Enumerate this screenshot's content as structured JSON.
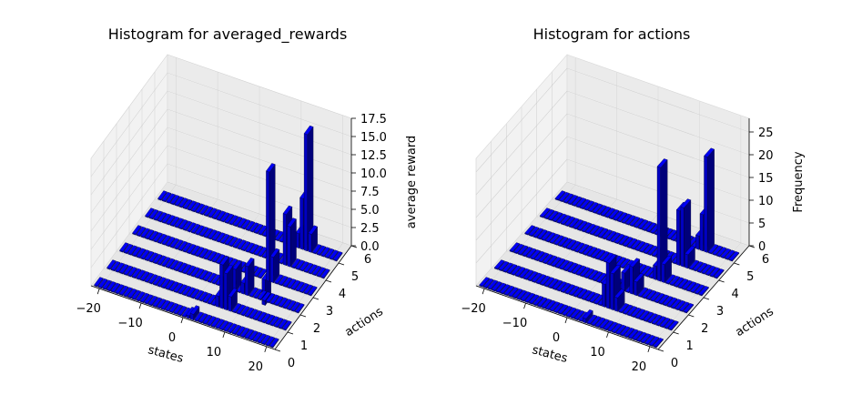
{
  "chart_data": [
    {
      "type": "bar3d",
      "title": "Histogram for averaged_rewards",
      "xlabel": "states",
      "ylabel": "actions",
      "zlabel": "average reward",
      "xlim": [
        -22,
        22
      ],
      "ylim": [
        0,
        6
      ],
      "zlim": [
        0,
        17.5
      ],
      "xticks": [
        "−20",
        "−10",
        "0",
        "10",
        "20"
      ],
      "yticks": [
        "0",
        "1",
        "2",
        "3",
        "4",
        "5",
        "6"
      ],
      "zticks": [
        "0.0",
        "2.5",
        "5.0",
        "7.5",
        "10.0",
        "12.5",
        "15.0",
        "17.5"
      ],
      "state_range": [
        -21,
        21
      ],
      "action_rows": [
        0,
        1,
        2,
        3,
        4,
        5
      ],
      "bar_color": "#0000cc",
      "bars": [
        {
          "state": 1,
          "action": 0,
          "value": 0.4
        },
        {
          "state": 2,
          "action": 0,
          "value": 0.8
        },
        {
          "state": 5,
          "action": 1,
          "value": 1.5
        },
        {
          "state": 6,
          "action": 1,
          "value": 6.0
        },
        {
          "state": 7,
          "action": 1,
          "value": 5.0
        },
        {
          "state": 8,
          "action": 1,
          "value": 2.0
        },
        {
          "state": 6,
          "action": 2,
          "value": 3.0
        },
        {
          "state": 8,
          "action": 2,
          "value": 1.5
        },
        {
          "state": 9,
          "action": 2,
          "value": 4.0
        },
        {
          "state": 10,
          "action": 3,
          "value": -3.5
        },
        {
          "state": 11,
          "action": 3,
          "value": 15.0
        },
        {
          "state": 12,
          "action": 3,
          "value": 3.5
        },
        {
          "state": 12,
          "action": 4,
          "value": 7.0
        },
        {
          "state": 13,
          "action": 4,
          "value": 5.5
        },
        {
          "state": 12,
          "action": 5,
          "value": 2.0
        },
        {
          "state": 13,
          "action": 5,
          "value": 7.0
        },
        {
          "state": 14,
          "action": 5,
          "value": 16.0
        },
        {
          "state": 15,
          "action": 5,
          "value": 2.5
        }
      ]
    },
    {
      "type": "bar3d",
      "title": "Histogram for actions",
      "xlabel": "states",
      "ylabel": "actions",
      "zlabel": "Frequency",
      "xlim": [
        -22,
        22
      ],
      "ylim": [
        0,
        6
      ],
      "zlim": [
        0,
        28
      ],
      "xticks": [
        "−20",
        "−10",
        "0",
        "10",
        "20"
      ],
      "yticks": [
        "0",
        "1",
        "2",
        "3",
        "4",
        "5",
        "6"
      ],
      "zticks": [
        "0",
        "5",
        "10",
        "15",
        "20",
        "25"
      ],
      "state_range": [
        -21,
        21
      ],
      "action_rows": [
        0,
        1,
        2,
        3,
        4,
        5
      ],
      "bar_color": "#0000cc",
      "bars": [
        {
          "state": 4,
          "action": 0,
          "value": 1
        },
        {
          "state": 5,
          "action": 1,
          "value": 5
        },
        {
          "state": 6,
          "action": 1,
          "value": 10
        },
        {
          "state": 7,
          "action": 1,
          "value": 8
        },
        {
          "state": 8,
          "action": 1,
          "value": 3
        },
        {
          "state": 6,
          "action": 2,
          "value": 4
        },
        {
          "state": 8,
          "action": 2,
          "value": 6
        },
        {
          "state": 9,
          "action": 2,
          "value": 3
        },
        {
          "state": 10,
          "action": 3,
          "value": 3
        },
        {
          "state": 11,
          "action": 3,
          "value": 25
        },
        {
          "state": 12,
          "action": 3,
          "value": 4
        },
        {
          "state": 12,
          "action": 4,
          "value": 12
        },
        {
          "state": 13,
          "action": 4,
          "value": 13
        },
        {
          "state": 14,
          "action": 4,
          "value": 3
        },
        {
          "state": 13,
          "action": 5,
          "value": 3
        },
        {
          "state": 14,
          "action": 5,
          "value": 8
        },
        {
          "state": 15,
          "action": 5,
          "value": 21
        }
      ]
    }
  ]
}
